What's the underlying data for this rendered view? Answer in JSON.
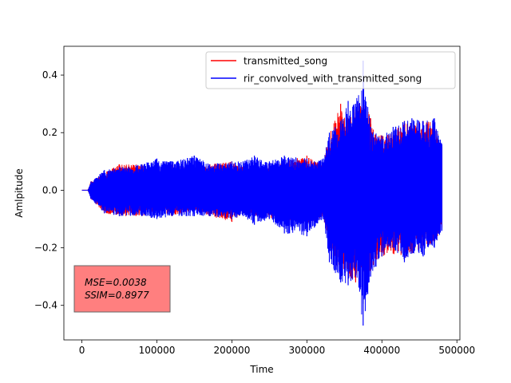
{
  "chart_data": {
    "type": "line",
    "title": "",
    "xlabel": "Time",
    "ylabel": "Amlpitude",
    "xlim": [
      -24000,
      504000
    ],
    "ylim": [
      -0.52,
      0.5
    ],
    "x_ticks": [
      0,
      100000,
      200000,
      300000,
      400000,
      500000
    ],
    "x_tick_labels": [
      "0",
      "100000",
      "200000",
      "300000",
      "400000",
      "500000"
    ],
    "y_ticks": [
      -0.4,
      -0.2,
      0.0,
      0.2,
      0.4
    ],
    "y_tick_labels": [
      "−0.4",
      "−0.2",
      "0.0",
      "0.2",
      "0.4"
    ],
    "grid": false,
    "legend_position": "upper right",
    "series": [
      {
        "name": "transmitted_song",
        "color": "#ff0000",
        "envelope_x": [
          0,
          8000,
          12000,
          30000,
          50000,
          80000,
          100000,
          120000,
          150000,
          170000,
          200000,
          215000,
          230000,
          250000,
          270000,
          300000,
          310000,
          322000,
          330000,
          345000,
          355000,
          365000,
          375000,
          385000,
          400000,
          415000,
          430000,
          440000,
          455000,
          470000,
          480000
        ],
        "envelope_top": [
          0.0,
          0.0,
          0.03,
          0.06,
          0.09,
          0.09,
          0.07,
          0.09,
          0.07,
          0.09,
          0.1,
          0.08,
          0.07,
          0.09,
          0.1,
          0.12,
          0.1,
          0.09,
          0.19,
          0.3,
          0.25,
          0.28,
          0.33,
          0.25,
          0.19,
          0.2,
          0.24,
          0.23,
          0.24,
          0.24,
          0.15
        ],
        "envelope_bottom": [
          0.0,
          0.0,
          -0.03,
          -0.08,
          -0.09,
          -0.09,
          -0.07,
          -0.09,
          -0.07,
          -0.09,
          -0.11,
          -0.08,
          -0.09,
          -0.1,
          -0.1,
          -0.12,
          -0.11,
          -0.09,
          -0.2,
          -0.3,
          -0.31,
          -0.32,
          -0.3,
          -0.28,
          -0.23,
          -0.22,
          -0.24,
          -0.22,
          -0.2,
          -0.18,
          -0.13
        ]
      },
      {
        "name": "rir_convolved_with_transmitted_song",
        "color": "#0000ff",
        "envelope_x": [
          0,
          8000,
          12000,
          30000,
          50000,
          80000,
          100000,
          120000,
          150000,
          170000,
          200000,
          215000,
          230000,
          250000,
          270000,
          300000,
          310000,
          322000,
          330000,
          345000,
          355000,
          365000,
          375000,
          385000,
          400000,
          415000,
          430000,
          440000,
          455000,
          470000,
          480000
        ],
        "envelope_top": [
          0.0,
          0.0,
          0.03,
          0.07,
          0.08,
          0.09,
          0.11,
          0.1,
          0.12,
          0.09,
          0.1,
          0.1,
          0.12,
          0.1,
          0.12,
          0.11,
          0.1,
          0.11,
          0.2,
          0.24,
          0.31,
          0.3,
          0.45,
          0.22,
          0.19,
          0.22,
          0.24,
          0.25,
          0.24,
          0.25,
          0.16
        ],
        "envelope_bottom": [
          0.0,
          0.0,
          -0.03,
          -0.08,
          -0.09,
          -0.09,
          -0.1,
          -0.09,
          -0.09,
          -0.09,
          -0.1,
          -0.09,
          -0.12,
          -0.1,
          -0.15,
          -0.16,
          -0.13,
          -0.1,
          -0.25,
          -0.32,
          -0.33,
          -0.3,
          -0.47,
          -0.3,
          -0.23,
          -0.2,
          -0.25,
          -0.22,
          -0.23,
          -0.2,
          -0.14
        ]
      }
    ],
    "annotation": {
      "lines": [
        "MSE=0.0038",
        "SSIM=0.8977"
      ],
      "box_color": "#ff7f7f",
      "position": "lower left"
    }
  }
}
